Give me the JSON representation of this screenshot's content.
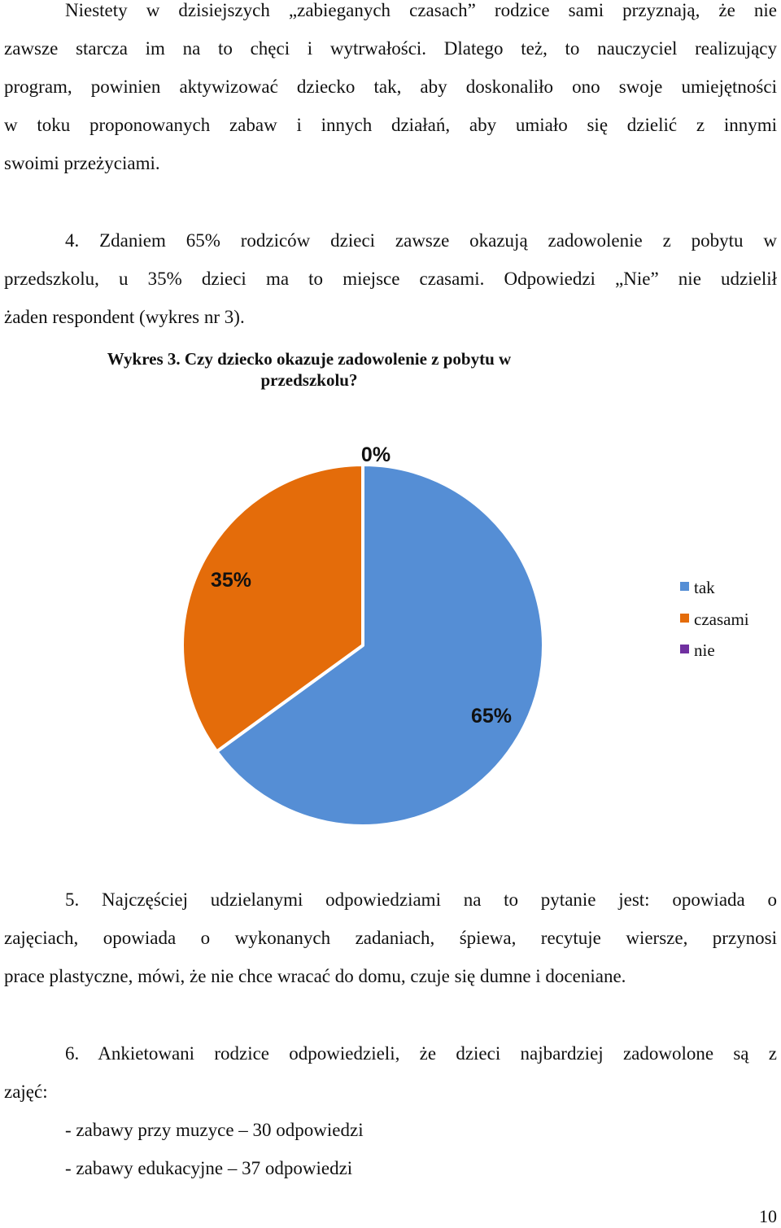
{
  "paragraphs": {
    "intro_lines": [
      "Niestety w dzisiejszych „zabieganych czasach” rodzice sami przyznają, że nie",
      "zawsze starcza im na to chęci i wytrwałości. Dlatego też, to nauczyciel realizujący",
      "program, powinien aktywizować dziecko tak, aby doskonaliło ono swoje umiejętności",
      "w toku proponowanych zabaw i innych działań, aby umiało się dzielić z innymi",
      "swoimi przeżyciami."
    ],
    "p4_first": "4. Zdaniem  65% rodziców dzieci zawsze okazują zadowolenie z pobytu w",
    "p4_second": "przedszkolu, u 35% dzieci ma to miejsce czasami. Odpowiedzi „Nie” nie udzielił",
    "p4_third": "żaden respondent (wykres nr 3).",
    "p5_first": "5. Najczęściej udzielanymi odpowiedziami na to pytanie jest: opowiada o",
    "p5_second": "zajęciach, opowiada o wykonanych zadaniach, śpiewa,  recytuje wiersze, przynosi",
    "p5_third": "prace plastyczne, mówi, że nie chce wracać do domu, czuje się dumne i doceniane.",
    "p6_first": "6. Ankietowani rodzice odpowiedzieli, że dzieci najbardziej zadowolone są z",
    "p6_second": "zajęć:",
    "list": [
      "- zabawy przy muzyce – 30 odpowiedzi",
      "- zabawy edukacyjne – 37 odpowiedzi"
    ]
  },
  "chart_data": {
    "type": "pie",
    "title": "Wykres 3. Czy dziecko okazuje zadowolenie z pobytu w przedszkolu?",
    "categories": [
      "tak",
      "czasami",
      "nie"
    ],
    "values": [
      65,
      35,
      0
    ],
    "labels": [
      "65%",
      "35%",
      "0%"
    ],
    "colors": [
      "#558ed5",
      "#e46c0a",
      "#7030a0"
    ],
    "legend": "right"
  },
  "page_number": "10"
}
